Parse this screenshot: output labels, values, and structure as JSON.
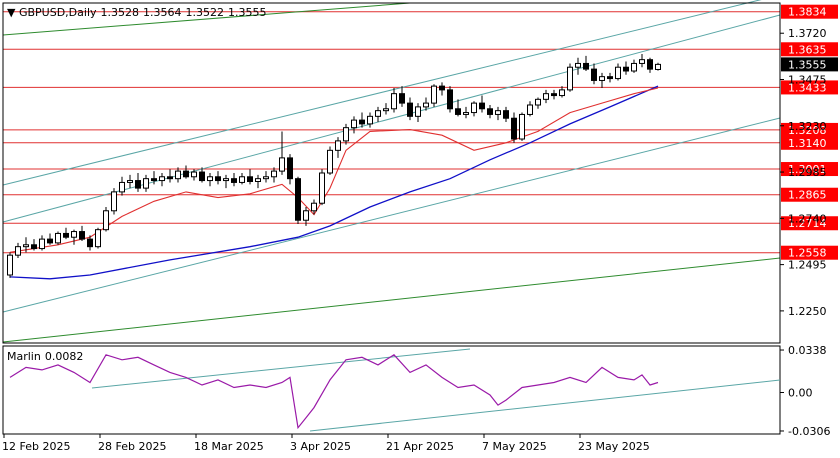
{
  "header": {
    "symbol": "GBPUSD,Daily",
    "open": "1.3528",
    "high": "1.3564",
    "low": "1.3522",
    "close": "1.3555"
  },
  "chart_data": {
    "type": "candlestick",
    "price_axis": {
      "range": [
        1.208,
        1.388
      ],
      "ticks": [
        "1.3720",
        "1.3475",
        "1.3230",
        "1.2985",
        "1.2740",
        "1.2495",
        "1.2250"
      ],
      "tick_values": [
        1.372,
        1.3475,
        1.323,
        1.2985,
        1.274,
        1.2495,
        1.225
      ],
      "current_price": "1.3555"
    },
    "horizontal_levels": [
      {
        "label": "1.3834",
        "value": 1.3834
      },
      {
        "label": "1.3635",
        "value": 1.3635
      },
      {
        "label": "1.3433",
        "value": 1.3433
      },
      {
        "label": "1.3208",
        "value": 1.3208
      },
      {
        "label": "1.3140",
        "value": 1.314
      },
      {
        "label": "1.3001",
        "value": 1.3001
      },
      {
        "label": "1.2865",
        "value": 1.2865
      },
      {
        "label": "1.2714",
        "value": 1.2714
      },
      {
        "label": "1.2558",
        "value": 1.2558
      }
    ],
    "x_axis_labels": [
      {
        "label": "12 Feb 2025",
        "index": 0
      },
      {
        "label": "28 Feb 2025",
        "index": 12
      },
      {
        "label": "18 Mar 2025",
        "index": 24
      },
      {
        "label": "3 Apr 2025",
        "index": 36
      },
      {
        "label": "21 Apr 2025",
        "index": 48
      },
      {
        "label": "7 May 2025",
        "index": 60
      },
      {
        "label": "23 May 2025",
        "index": 72
      }
    ],
    "candles": [
      [
        1.244,
        1.256,
        1.2425,
        1.2545
      ],
      [
        1.2545,
        1.261,
        1.253,
        1.259
      ],
      [
        1.259,
        1.264,
        1.256,
        1.26
      ],
      [
        1.26,
        1.263,
        1.257,
        1.258
      ],
      [
        1.258,
        1.265,
        1.257,
        1.263
      ],
      [
        1.263,
        1.266,
        1.26,
        1.261
      ],
      [
        1.261,
        1.267,
        1.26,
        1.266
      ],
      [
        1.266,
        1.269,
        1.263,
        1.264
      ],
      [
        1.264,
        1.268,
        1.26,
        1.267
      ],
      [
        1.267,
        1.27,
        1.262,
        1.263
      ],
      [
        1.263,
        1.265,
        1.257,
        1.259
      ],
      [
        1.259,
        1.269,
        1.258,
        1.268
      ],
      [
        1.268,
        1.28,
        1.267,
        1.278
      ],
      [
        1.278,
        1.29,
        1.276,
        1.288
      ],
      [
        1.288,
        1.296,
        1.286,
        1.293
      ],
      [
        1.293,
        1.297,
        1.29,
        1.294
      ],
      [
        1.294,
        1.298,
        1.288,
        1.29
      ],
      [
        1.29,
        1.297,
        1.288,
        1.295
      ],
      [
        1.295,
        1.299,
        1.292,
        1.294
      ],
      [
        1.294,
        1.298,
        1.291,
        1.296
      ],
      [
        1.296,
        1.3,
        1.293,
        1.295
      ],
      [
        1.295,
        1.301,
        1.293,
        1.299
      ],
      [
        1.299,
        1.302,
        1.295,
        1.296
      ],
      [
        1.296,
        1.3,
        1.294,
        1.2985
      ],
      [
        1.2985,
        1.301,
        1.293,
        1.294
      ],
      [
        1.294,
        1.298,
        1.291,
        1.296
      ],
      [
        1.296,
        1.299,
        1.292,
        1.294
      ],
      [
        1.294,
        1.297,
        1.29,
        1.295
      ],
      [
        1.295,
        1.298,
        1.291,
        1.293
      ],
      [
        1.293,
        1.298,
        1.292,
        1.296
      ],
      [
        1.296,
        1.3,
        1.292,
        1.2935
      ],
      [
        1.2935,
        1.297,
        1.29,
        1.295
      ],
      [
        1.295,
        1.299,
        1.293,
        1.296
      ],
      [
        1.296,
        1.301,
        1.293,
        1.299
      ],
      [
        1.299,
        1.32,
        1.297,
        1.306
      ],
      [
        1.306,
        1.308,
        1.292,
        1.295
      ],
      [
        1.295,
        1.296,
        1.271,
        1.273
      ],
      [
        1.273,
        1.28,
        1.27,
        1.278
      ],
      [
        1.278,
        1.284,
        1.276,
        1.282
      ],
      [
        1.282,
        1.3,
        1.281,
        1.298
      ],
      [
        1.298,
        1.312,
        1.297,
        1.31
      ],
      [
        1.31,
        1.317,
        1.306,
        1.315
      ],
      [
        1.315,
        1.324,
        1.313,
        1.322
      ],
      [
        1.322,
        1.328,
        1.319,
        1.326
      ],
      [
        1.326,
        1.33,
        1.322,
        1.324
      ],
      [
        1.324,
        1.33,
        1.322,
        1.328
      ],
      [
        1.328,
        1.333,
        1.325,
        1.331
      ],
      [
        1.331,
        1.335,
        1.329,
        1.332
      ],
      [
        1.332,
        1.343,
        1.33,
        1.34
      ],
      [
        1.34,
        1.344,
        1.333,
        1.335
      ],
      [
        1.335,
        1.338,
        1.326,
        1.328
      ],
      [
        1.328,
        1.335,
        1.325,
        1.333
      ],
      [
        1.333,
        1.338,
        1.331,
        1.335
      ],
      [
        1.335,
        1.345,
        1.333,
        1.344
      ],
      [
        1.344,
        1.346,
        1.339,
        1.342
      ],
      [
        1.342,
        1.344,
        1.33,
        1.332
      ],
      [
        1.332,
        1.337,
        1.328,
        1.329
      ],
      [
        1.329,
        1.333,
        1.327,
        1.33
      ],
      [
        1.33,
        1.336,
        1.328,
        1.335
      ],
      [
        1.335,
        1.339,
        1.33,
        1.332
      ],
      [
        1.332,
        1.334,
        1.327,
        1.329
      ],
      [
        1.329,
        1.333,
        1.326,
        1.331
      ],
      [
        1.331,
        1.333,
        1.325,
        1.327
      ],
      [
        1.327,
        1.33,
        1.314,
        1.316
      ],
      [
        1.316,
        1.33,
        1.315,
        1.329
      ],
      [
        1.329,
        1.336,
        1.328,
        1.334
      ],
      [
        1.334,
        1.338,
        1.332,
        1.337
      ],
      [
        1.337,
        1.342,
        1.335,
        1.34
      ],
      [
        1.34,
        1.342,
        1.337,
        1.339
      ],
      [
        1.339,
        1.344,
        1.338,
        1.342
      ],
      [
        1.342,
        1.356,
        1.341,
        1.354
      ],
      [
        1.354,
        1.359,
        1.35,
        1.356
      ],
      [
        1.356,
        1.36,
        1.352,
        1.353
      ],
      [
        1.353,
        1.356,
        1.345,
        1.347
      ],
      [
        1.347,
        1.351,
        1.343,
        1.349
      ],
      [
        1.349,
        1.351,
        1.346,
        1.348
      ],
      [
        1.348,
        1.356,
        1.347,
        1.354
      ],
      [
        1.354,
        1.357,
        1.35,
        1.352
      ],
      [
        1.352,
        1.358,
        1.351,
        1.356
      ],
      [
        1.356,
        1.361,
        1.354,
        1.358
      ],
      [
        1.358,
        1.359,
        1.351,
        1.353
      ],
      [
        1.3528,
        1.3564,
        1.3522,
        1.3555
      ]
    ],
    "sma_red": [
      [
        0,
        1.256
      ],
      [
        6,
        1.26
      ],
      [
        10,
        1.264
      ],
      [
        14,
        1.275
      ],
      [
        18,
        1.283
      ],
      [
        22,
        1.288
      ],
      [
        26,
        1.285
      ],
      [
        30,
        1.287
      ],
      [
        34,
        1.292
      ],
      [
        36,
        1.285
      ],
      [
        38,
        1.276
      ],
      [
        40,
        1.29
      ],
      [
        42,
        1.31
      ],
      [
        45,
        1.32
      ],
      [
        50,
        1.321
      ],
      [
        54,
        1.318
      ],
      [
        58,
        1.31
      ],
      [
        62,
        1.314
      ],
      [
        66,
        1.32
      ],
      [
        70,
        1.33
      ],
      [
        74,
        1.335
      ],
      [
        78,
        1.34
      ],
      [
        81,
        1.343
      ]
    ],
    "sma_blue": [
      [
        0,
        1.243
      ],
      [
        5,
        1.242
      ],
      [
        10,
        1.244
      ],
      [
        20,
        1.252
      ],
      [
        30,
        1.259
      ],
      [
        36,
        1.264
      ],
      [
        40,
        1.27
      ],
      [
        45,
        1.28
      ],
      [
        50,
        1.288
      ],
      [
        55,
        1.295
      ],
      [
        60,
        1.305
      ],
      [
        65,
        1.314
      ],
      [
        70,
        1.324
      ],
      [
        75,
        1.333
      ],
      [
        81,
        1.344
      ]
    ],
    "indicator": {
      "name": "Marlin",
      "value": "0.0082",
      "range": [
        -0.033,
        0.037
      ],
      "ticks": [
        "0.0338",
        "0.00",
        "-0.0306"
      ],
      "tick_values": [
        0.0338,
        0.0,
        -0.0306
      ],
      "values": [
        [
          0,
          0.012
        ],
        [
          2,
          0.02
        ],
        [
          4,
          0.018
        ],
        [
          6,
          0.022
        ],
        [
          8,
          0.016
        ],
        [
          10,
          0.008
        ],
        [
          12,
          0.03
        ],
        [
          14,
          0.026
        ],
        [
          16,
          0.028
        ],
        [
          18,
          0.022
        ],
        [
          20,
          0.016
        ],
        [
          22,
          0.012
        ],
        [
          24,
          0.006
        ],
        [
          26,
          0.01
        ],
        [
          28,
          0.004
        ],
        [
          30,
          0.006
        ],
        [
          32,
          0.004
        ],
        [
          34,
          0.008
        ],
        [
          35,
          0.012
        ],
        [
          36,
          -0.028
        ],
        [
          37,
          -0.02
        ],
        [
          38,
          -0.012
        ],
        [
          40,
          0.01
        ],
        [
          42,
          0.026
        ],
        [
          44,
          0.028
        ],
        [
          46,
          0.022
        ],
        [
          48,
          0.03
        ],
        [
          50,
          0.016
        ],
        [
          52,
          0.022
        ],
        [
          54,
          0.012
        ],
        [
          56,
          0.004
        ],
        [
          58,
          0.006
        ],
        [
          60,
          -0.002
        ],
        [
          61,
          -0.01
        ],
        [
          62,
          -0.006
        ],
        [
          64,
          0.004
        ],
        [
          66,
          0.006
        ],
        [
          68,
          0.008
        ],
        [
          70,
          0.012
        ],
        [
          72,
          0.008
        ],
        [
          74,
          0.02
        ],
        [
          76,
          0.012
        ],
        [
          78,
          0.01
        ],
        [
          79,
          0.014
        ],
        [
          80,
          0.006
        ],
        [
          81,
          0.008
        ]
      ]
    }
  }
}
